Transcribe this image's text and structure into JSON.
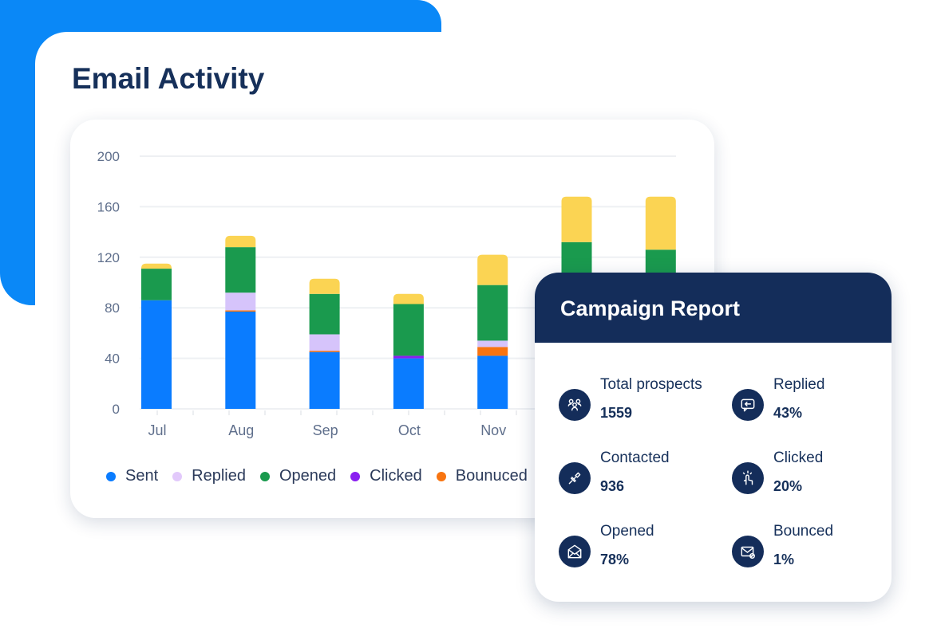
{
  "title": "Email Activity",
  "colors": {
    "sent": "#0a7cff",
    "replied": "#d6c4fb",
    "opened": "#1a9a4e",
    "clicked": "#8a1ff0",
    "bounced": "#f87410",
    "other": "#fbd453",
    "brand_blue": "#0a88f7",
    "navy": "#142d5a"
  },
  "chart_data": {
    "type": "bar",
    "stacked": true,
    "categories": [
      "Jul",
      "Aug",
      "Sep",
      "Oct",
      "Nov",
      "",
      ""
    ],
    "series": [
      {
        "name": "Sent",
        "color": "#0a7cff",
        "values": [
          86,
          77,
          45,
          40,
          42,
          null,
          null
        ]
      },
      {
        "name": "Bounuced",
        "color": "#f87410",
        "values": [
          0,
          1,
          1,
          0,
          7,
          null,
          null
        ]
      },
      {
        "name": "Clicked",
        "color": "#8a1ff0",
        "values": [
          0,
          0,
          0,
          2,
          0,
          null,
          null
        ]
      },
      {
        "name": "Replied",
        "color": "#d6c4fb",
        "values": [
          0,
          14,
          13,
          0,
          5,
          null,
          null
        ]
      },
      {
        "name": "Opened",
        "color": "#1a9a4e",
        "values": [
          25,
          36,
          32,
          41,
          44,
          null,
          null
        ],
        "tops": [
          111,
          128,
          91,
          83,
          98,
          132,
          126
        ]
      },
      {
        "color": "#fbd453",
        "values": [
          4,
          9,
          12,
          8,
          24,
          36,
          42
        ]
      }
    ],
    "yticks": [
      0,
      40,
      80,
      120,
      160,
      200
    ],
    "ylim": [
      0,
      200
    ],
    "grid": true,
    "legend_position": "bottom",
    "legend": [
      "Sent",
      "Replied",
      "Opened",
      "Clicked",
      "Bounuced"
    ]
  },
  "campaign": {
    "title": "Campaign Report",
    "stats": [
      {
        "label": "Total prospects",
        "value": "1559",
        "icon": "users-icon"
      },
      {
        "label": "Replied",
        "value": "43%",
        "icon": "reply-chat-icon"
      },
      {
        "label": "Contacted",
        "value": "936",
        "icon": "plug-icon"
      },
      {
        "label": "Clicked",
        "value": "20%",
        "icon": "pointer-hand-icon"
      },
      {
        "label": "Opened",
        "value": "78%",
        "icon": "envelope-open-icon"
      },
      {
        "label": "Bounced",
        "value": "1%",
        "icon": "envelope-blocked-icon"
      }
    ]
  }
}
